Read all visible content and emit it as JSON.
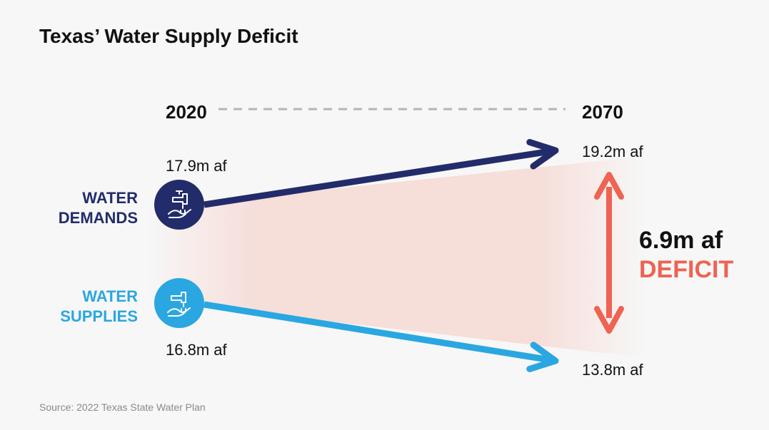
{
  "chart_data": {
    "type": "line",
    "title": "Texas’ Water Supply Deficit",
    "x": [
      "2020",
      "2070"
    ],
    "series": [
      {
        "name": "WATER DEMANDS",
        "name_lines": [
          "WATER",
          "DEMANDS"
        ],
        "values": [
          17.9,
          19.2
        ],
        "value_labels": [
          "17.9m af",
          "19.2m af"
        ],
        "color": "#232c6a",
        "icon": "water-demand-faucet-icon"
      },
      {
        "name": "WATER SUPPLIES",
        "name_lines": [
          "WATER",
          "SUPPLIES"
        ],
        "values": [
          16.8,
          13.8
        ],
        "value_labels": [
          "16.8m af",
          "13.8m af"
        ],
        "color": "#2aa7e1",
        "icon": "water-supply-faucet-icon"
      }
    ],
    "annotation": {
      "value_label": "6.9m af",
      "label": "DEFICIT",
      "color": "#ee6352"
    },
    "shaded_gap_color": "#f6c9c1",
    "source": "Source: 2022 Texas State Water Plan",
    "ylim": [
      13,
      20
    ]
  }
}
